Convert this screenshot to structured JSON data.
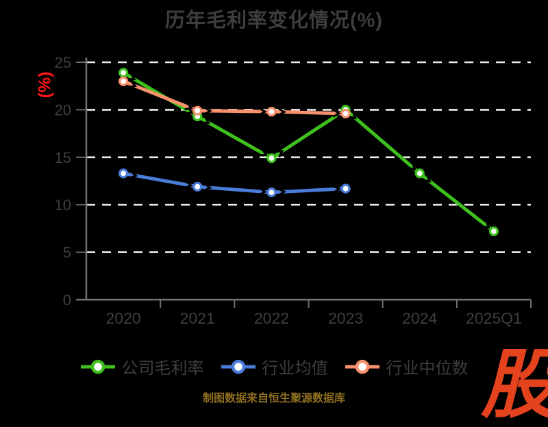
{
  "title": "历年毛利率变化情况(%)",
  "source_note": "制图数据来自恒生聚源数据库",
  "logo_text": "股",
  "colors": {
    "background": "#000000",
    "title_text": "#3e3e3e",
    "axis_text": "#3e3e3e",
    "axis_line": "#707070",
    "gridline": "#ededed",
    "y_unit_label": "#ff1616",
    "source_text": "#8e6e20",
    "logo": "#e5421e",
    "arrow": "#000000",
    "marker_fill": "#ffffff"
  },
  "chart_data": {
    "type": "line",
    "title": "历年毛利率变化情况(%)",
    "ylabel": "(%)",
    "categories": [
      "2020",
      "2021",
      "2022",
      "2023",
      "2024",
      "2025Q1"
    ],
    "series": [
      {
        "name": "公司毛利率",
        "color": "#3ec11e",
        "values": [
          23.9,
          19.3,
          14.9,
          20.0,
          13.3,
          7.2
        ]
      },
      {
        "name": "行业均值",
        "color": "#4a7cd9",
        "values": [
          13.3,
          11.9,
          11.3,
          11.7,
          null,
          null
        ]
      },
      {
        "name": "行业中位数",
        "color": "#f8916c",
        "values": [
          23.0,
          19.9,
          19.8,
          19.6,
          null,
          null
        ]
      }
    ],
    "ylim": [
      0,
      25
    ],
    "yticks": [
      0,
      5,
      10,
      15,
      20,
      25
    ],
    "grid": "horizontal-dashed-white",
    "legend_position": "bottom",
    "marker": "circle-white-fill",
    "line_decoration": "black-arrowheads-along-segments"
  }
}
